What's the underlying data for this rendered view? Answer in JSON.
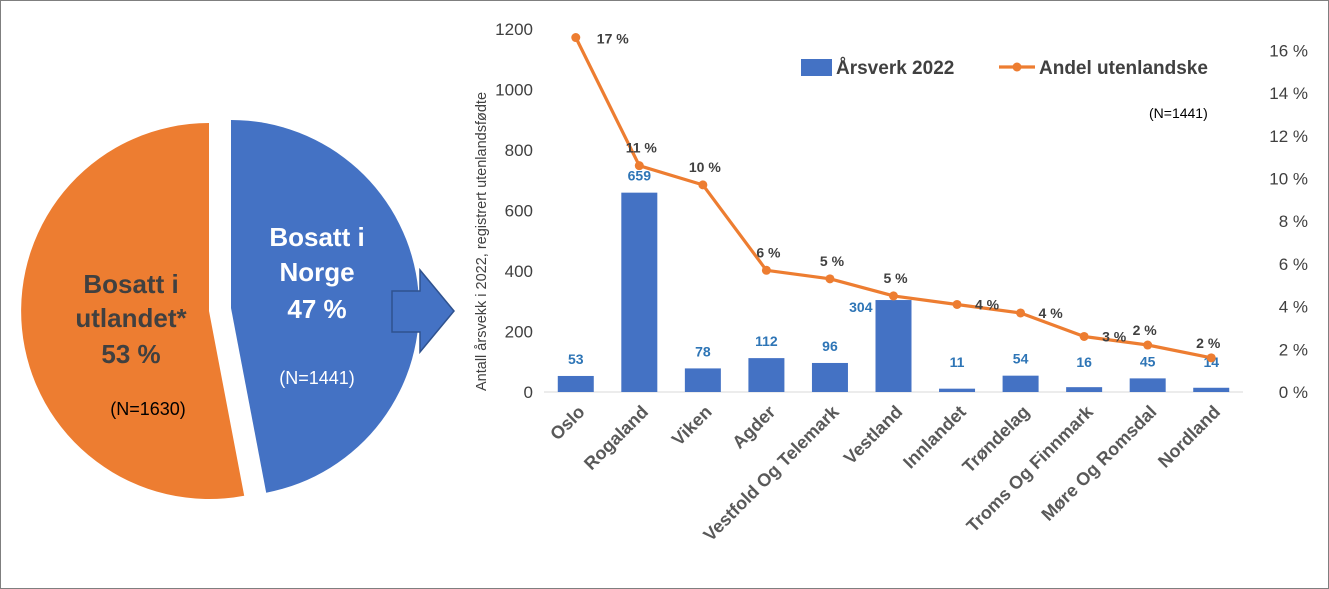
{
  "chart_data": [
    {
      "type": "pie",
      "slices": [
        {
          "label_line1": "Bosatt i",
          "label_line2": "Norge",
          "percent_label": "47 %",
          "value": 47,
          "n_label": "(N=1441)",
          "color": "#4472C4"
        },
        {
          "label_line1": "Bosatt i",
          "label_line2": "utlandet*",
          "percent_label": "53 %",
          "value": 53,
          "n_label": "(N=1630)",
          "color": "#ED7D31"
        }
      ]
    },
    {
      "type": "bar",
      "note": "(N=1441)",
      "ylabel": "Antall årsvekk i 2022, registrert utenlandsfødte",
      "ylim": [
        0,
        1200
      ],
      "y2lim": [
        0,
        17
      ],
      "yticks": [
        "0",
        "200",
        "400",
        "600",
        "800",
        "1000",
        "1200"
      ],
      "y2ticks": [
        "0 %",
        "2 %",
        "4 %",
        "6 %",
        "8 %",
        "10 %",
        "12 %",
        "14 %",
        "16 %"
      ],
      "categories": [
        "Oslo",
        "Rogaland",
        "Viken",
        "Agder",
        "Vestfold Og Telemark",
        "Vestland",
        "Innlandet",
        "Trøndelag",
        "Troms Og Finnmark",
        "Møre Og Romsdal",
        "Nordland"
      ],
      "series": [
        {
          "name": "Årsverk 2022",
          "kind": "bar",
          "axis": "left",
          "color": "#4472C4",
          "label_color": "#2E75B6",
          "values": [
            53,
            659,
            78,
            112,
            96,
            304,
            11,
            54,
            16,
            45,
            14
          ],
          "labels": [
            "53",
            "659",
            "78",
            "112",
            "96",
            "304",
            "11",
            "54",
            "16",
            "45",
            "14"
          ]
        },
        {
          "name": "Andel utenlandske",
          "kind": "line",
          "axis": "right",
          "color": "#ED7D31",
          "values": [
            16.6,
            10.6,
            9.7,
            5.7,
            5.3,
            4.5,
            4.1,
            3.7,
            2.6,
            2.2,
            1.6
          ],
          "labels": [
            "17 %",
            "11 %",
            "10 %",
            "6 %",
            "5 %",
            "5 %",
            "4 %",
            "4 %",
            "3 %",
            "2 %",
            "2 %"
          ]
        }
      ]
    }
  ]
}
